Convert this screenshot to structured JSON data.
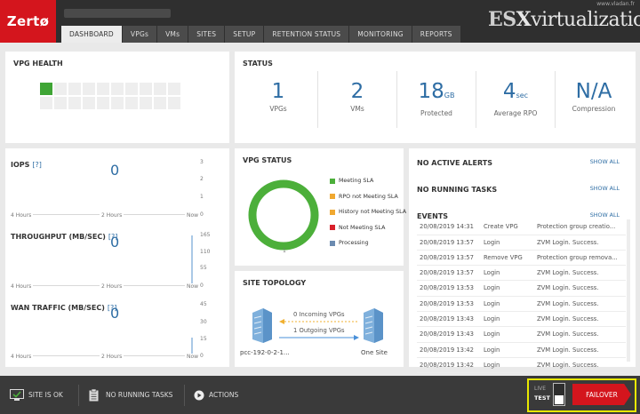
{
  "app": {
    "logo": "Zertø"
  },
  "tabs": [
    "DASHBOARD",
    "VPGs",
    "VMs",
    "SITES",
    "SETUP",
    "RETENTION STATUS",
    "MONITORING",
    "REPORTS"
  ],
  "watermark": {
    "url": "www.vladan.fr",
    "es": "ES",
    "x": "X",
    "rest": "virtualization"
  },
  "vpg_health": {
    "title": "VPG HEALTH",
    "cells_total": 20,
    "cells_ok": [
      0
    ]
  },
  "status": {
    "title": "STATUS",
    "items": [
      {
        "value": "1",
        "unit": "",
        "label": "VPGs"
      },
      {
        "value": "2",
        "unit": "",
        "label": "VMs"
      },
      {
        "value": "18",
        "unit": "GB",
        "label": "Protected"
      },
      {
        "value": "4",
        "unit": "sec",
        "label": "Average RPO"
      },
      {
        "value": "N/A",
        "unit": "",
        "label": "Compression"
      }
    ]
  },
  "metrics": {
    "iops": {
      "title": "IOPS",
      "help": "[?]",
      "value": "0",
      "yticks": [
        "3",
        "2",
        "1",
        "0"
      ],
      "x": [
        "4 Hours",
        "2 Hours",
        "Now"
      ]
    },
    "throughput": {
      "title": "THROUGHPUT (MB/sec)",
      "help": "[?]",
      "value": "0",
      "yticks": [
        "165",
        "110",
        "55",
        "0"
      ],
      "x": [
        "4 Hours",
        "2 Hours",
        "Now"
      ]
    },
    "wan": {
      "title": "WAN TRAFFIC (MB/sec)",
      "help": "[?]",
      "value": "0",
      "yticks": [
        "45",
        "30",
        "15",
        "0"
      ],
      "x": [
        "4 Hours",
        "2 Hours",
        "Now"
      ]
    }
  },
  "vpg_status": {
    "title": "VPG STATUS",
    "count_label": "1",
    "legend": [
      {
        "label": "Meeting SLA",
        "color": "#4caf3a"
      },
      {
        "label": "RPO not Meeting SLA",
        "color": "#f0a830"
      },
      {
        "label": "History not Meeting SLA",
        "color": "#f0a830"
      },
      {
        "label": "Not Meeting SLA",
        "color": "#d9202a"
      },
      {
        "label": "Processing",
        "color": "#6b8bb0"
      }
    ]
  },
  "topology": {
    "title": "SITE TOPOLOGY",
    "incoming": "0 Incoming VPGs",
    "outgoing": "1 Outgoing VPGs",
    "left_site": "pcc-192-0-2-1...",
    "right_site": "One Site"
  },
  "alerts": {
    "no_alerts": "NO ACTIVE ALERTS",
    "no_tasks": "NO RUNNING TASKS",
    "events_title": "EVENTS",
    "show_all": "SHOW ALL"
  },
  "events": [
    {
      "time": "20/08/2019 14:31",
      "type": "Create VPG",
      "desc": "Protection group creatio..."
    },
    {
      "time": "20/08/2019 13:57",
      "type": "Login",
      "desc": "ZVM Login. Success."
    },
    {
      "time": "20/08/2019 13:57",
      "type": "Remove VPG",
      "desc": "Protection group remova..."
    },
    {
      "time": "20/08/2019 13:57",
      "type": "Login",
      "desc": "ZVM Login. Success."
    },
    {
      "time": "20/08/2019 13:53",
      "type": "Login",
      "desc": "ZVM Login. Success."
    },
    {
      "time": "20/08/2019 13:53",
      "type": "Login",
      "desc": "ZVM Login. Success."
    },
    {
      "time": "20/08/2019 13:43",
      "type": "Login",
      "desc": "ZVM Login. Success."
    },
    {
      "time": "20/08/2019 13:43",
      "type": "Login",
      "desc": "ZVM Login. Success."
    },
    {
      "time": "20/08/2019 13:42",
      "type": "Login",
      "desc": "ZVM Login. Success."
    },
    {
      "time": "20/08/2019 13:42",
      "type": "Login",
      "desc": "ZVM Login. Success."
    }
  ],
  "bottom": {
    "site_ok": "SITE IS OK",
    "no_tasks": "NO RUNNING TASKS",
    "actions": "ACTIONS",
    "live": "LIVE",
    "test": "TEST",
    "failover": "FAILOVER"
  }
}
